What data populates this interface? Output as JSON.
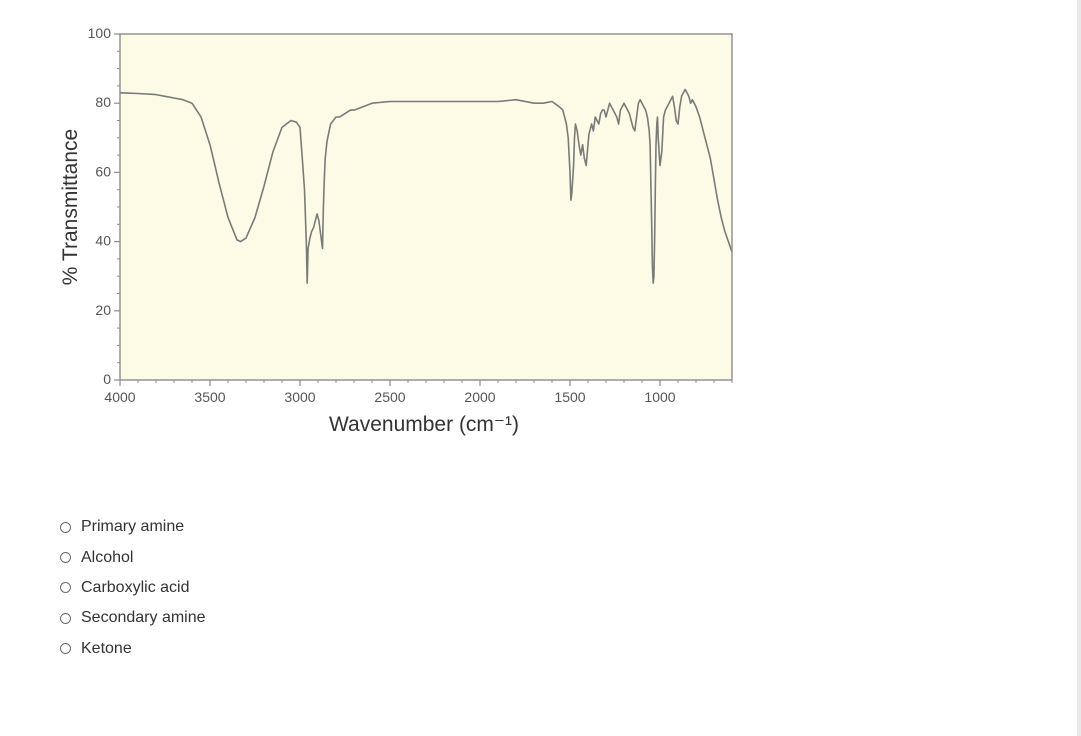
{
  "question": {
    "options": [
      "Primary amine",
      "Alcohol",
      "Carboxylic acid",
      "Secondary amine",
      "Ketone"
    ]
  },
  "colors": {
    "plot_background": "#fdfbe6",
    "trace": "#7a7a7a",
    "frame": "#8c8c8c"
  },
  "chart_data": {
    "type": "line",
    "title": "",
    "xlabel": "Wavenumber (cm⁻¹)",
    "ylabel": "% Transmittance",
    "xlim": [
      4000,
      600
    ],
    "ylim": [
      0,
      100
    ],
    "x_reversed": true,
    "grid": false,
    "x_ticks": [
      "4000",
      "3500",
      "3000",
      "2500",
      "2000",
      "1500",
      "1000"
    ],
    "y_ticks": [
      "0",
      "20",
      "40",
      "60",
      "80",
      "100"
    ],
    "series": [
      {
        "x": [
          4000,
          3900,
          3800,
          3750,
          3700,
          3650,
          3600,
          3550,
          3500,
          3450,
          3400,
          3350,
          3330,
          3300,
          3250,
          3200,
          3150,
          3100,
          3050,
          3020,
          3000,
          2990,
          2975,
          2965,
          2960,
          2955,
          2945,
          2935,
          2925,
          2915,
          2905,
          2895,
          2885,
          2875,
          2870,
          2865,
          2860,
          2850,
          2830,
          2800,
          2780,
          2750,
          2720,
          2700,
          2650,
          2600,
          2500,
          2400,
          2300,
          2200,
          2100,
          2000,
          1900,
          1800,
          1700,
          1650,
          1600,
          1560,
          1540,
          1520,
          1510,
          1500,
          1495,
          1490,
          1485,
          1480,
          1475,
          1470,
          1460,
          1450,
          1440,
          1430,
          1420,
          1410,
          1400,
          1395,
          1390,
          1385,
          1380,
          1375,
          1370,
          1365,
          1360,
          1350,
          1340,
          1330,
          1320,
          1310,
          1300,
          1290,
          1280,
          1270,
          1260,
          1250,
          1240,
          1230,
          1220,
          1210,
          1200,
          1190,
          1180,
          1170,
          1160,
          1150,
          1140,
          1130,
          1120,
          1110,
          1100,
          1090,
          1080,
          1070,
          1060,
          1055,
          1050,
          1046,
          1042,
          1038,
          1034,
          1030,
          1026,
          1022,
          1018,
          1014,
          1010,
          1000,
          990,
          980,
          970,
          960,
          950,
          940,
          930,
          920,
          910,
          900,
          890,
          880,
          870,
          860,
          850,
          840,
          830,
          820,
          800,
          780,
          750,
          720,
          700,
          680,
          660,
          640,
          620,
          600
        ],
        "y": [
          83,
          82.8,
          82.5,
          82,
          81.5,
          81,
          80,
          76,
          68,
          57,
          47,
          40.5,
          40,
          41,
          47,
          56,
          66,
          73,
          75,
          74.5,
          73,
          66,
          55,
          40,
          28,
          38,
          41,
          43,
          44,
          46,
          48,
          46,
          42,
          38,
          50,
          58,
          64,
          69,
          74,
          76,
          76,
          77,
          78,
          78,
          79,
          80,
          80.5,
          80.5,
          80.5,
          80.5,
          80.5,
          80.5,
          80.5,
          81,
          80,
          80,
          80.5,
          79,
          78,
          74,
          70,
          60,
          52,
          54,
          58,
          62,
          70,
          74,
          72,
          68,
          65,
          68,
          64,
          62,
          68,
          71,
          72,
          73,
          74,
          73,
          72,
          74,
          76,
          75,
          74,
          77,
          78,
          78,
          76,
          78,
          80,
          79,
          78,
          77,
          76,
          74,
          78,
          79,
          80,
          79,
          78,
          77,
          75,
          73,
          72,
          76,
          80,
          81,
          80,
          79,
          78,
          76,
          72,
          68,
          55,
          45,
          33,
          28,
          30,
          40,
          55,
          68,
          74,
          76,
          70,
          62,
          66,
          76,
          78,
          79,
          80,
          81,
          82,
          79,
          75,
          74,
          79,
          82,
          83,
          84,
          83,
          82,
          80,
          81,
          79,
          76,
          70,
          64,
          58,
          52,
          47,
          43,
          40,
          37
        ]
      }
    ]
  }
}
